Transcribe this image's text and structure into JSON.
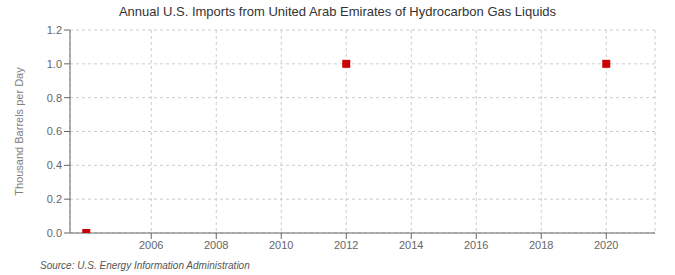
{
  "chart_data": {
    "type": "scatter",
    "title": "Annual U.S. Imports from United Arab Emirates of Hydrocarbon Gas Liquids",
    "y_label": "Thousand Barrels per Day",
    "source": "Source: U.S. Energy Information Administration",
    "x": [
      2004,
      2012,
      2020
    ],
    "values": [
      0.0,
      1.0,
      1.0
    ],
    "color": "#CC0000",
    "marker": "square",
    "xlim": [
      2003.5,
      2021.5
    ],
    "ylim": [
      0.0,
      1.2
    ],
    "xticks": [
      2006,
      2008,
      2010,
      2012,
      2014,
      2016,
      2018,
      2020
    ],
    "yticks": [
      {
        "value": 0,
        "label": "0.0"
      },
      0.2,
      0.4,
      0.6,
      0.8,
      {
        "value": 1,
        "label": "1.0"
      },
      1.2
    ],
    "grid": true
  }
}
